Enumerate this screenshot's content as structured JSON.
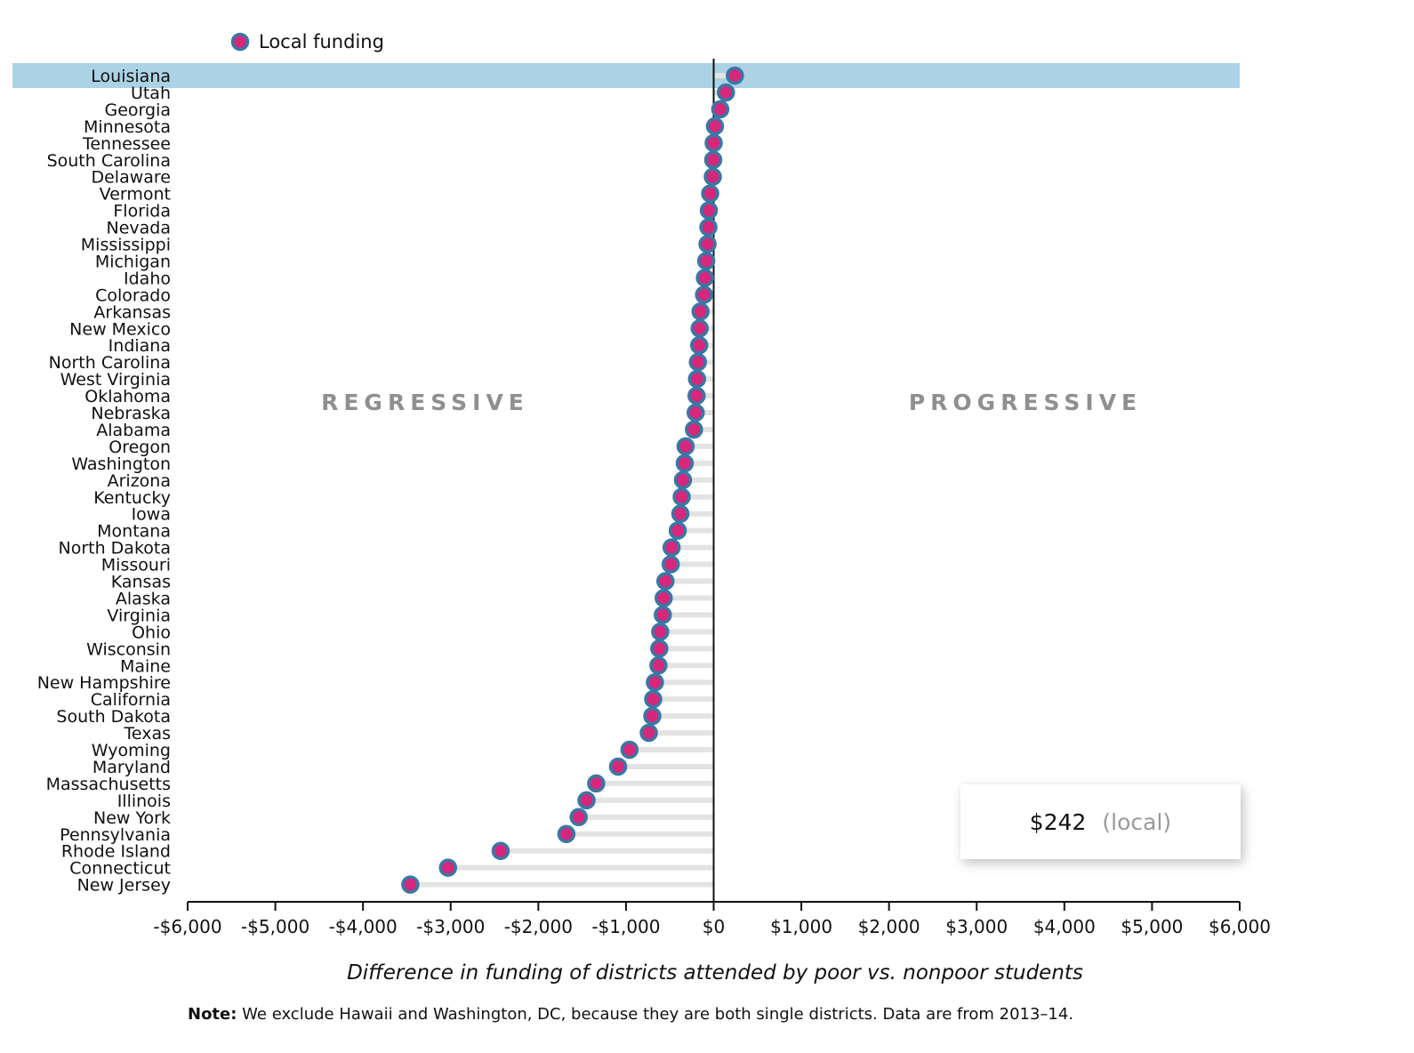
{
  "legend": {
    "label": "Local funding",
    "marker_icon": "dot-marker-icon"
  },
  "regions": {
    "left": "REGRESSIVE",
    "right": "PROGRESSIVE"
  },
  "tooltip": {
    "value": "$242",
    "type": "(local)"
  },
  "note": {
    "bold": "Note:",
    "text": " We exclude Hawaii and Washington, DC, because they are both single districts. Data are from 2013–14."
  },
  "colors": {
    "highlight": "#acd2e6",
    "marker_fill": "#d6277b",
    "marker_stroke": "#3a77a4",
    "stem": "#e3e3e3",
    "axis": "#111111"
  },
  "chart_data": {
    "type": "dot",
    "title": "",
    "xlabel": "Difference in funding of districts attended by poor vs. nonpoor students",
    "ylabel": "",
    "xlim": [
      -6000,
      6000
    ],
    "xticks": [
      -6000,
      -5000,
      -4000,
      -3000,
      -2000,
      -1000,
      0,
      1000,
      2000,
      3000,
      4000,
      5000,
      6000
    ],
    "xtick_labels": [
      "-$6,000",
      "-$5,000",
      "-$4,000",
      "-$3,000",
      "-$2,000",
      "-$1,000",
      "$0",
      "$1,000",
      "$2,000",
      "$3,000",
      "$4,000",
      "$5,000",
      "$6,000"
    ],
    "highlighted": "Louisiana",
    "series": [
      {
        "name": "Local funding",
        "points": [
          {
            "state": "Louisiana",
            "value": 242
          },
          {
            "state": "Utah",
            "value": 140
          },
          {
            "state": "Georgia",
            "value": 75
          },
          {
            "state": "Minnesota",
            "value": 15
          },
          {
            "state": "Tennessee",
            "value": 0
          },
          {
            "state": "South Carolina",
            "value": -5
          },
          {
            "state": "Delaware",
            "value": -10
          },
          {
            "state": "Vermont",
            "value": -40
          },
          {
            "state": "Florida",
            "value": -55
          },
          {
            "state": "Nevada",
            "value": -60
          },
          {
            "state": "Mississippi",
            "value": -70
          },
          {
            "state": "Michigan",
            "value": -85
          },
          {
            "state": "Idaho",
            "value": -100
          },
          {
            "state": "Colorado",
            "value": -110
          },
          {
            "state": "Arkansas",
            "value": -150
          },
          {
            "state": "New Mexico",
            "value": -160
          },
          {
            "state": "Indiana",
            "value": -165
          },
          {
            "state": "North Carolina",
            "value": -180
          },
          {
            "state": "West Virginia",
            "value": -190
          },
          {
            "state": "Oklahoma",
            "value": -195
          },
          {
            "state": "Nebraska",
            "value": -205
          },
          {
            "state": "Alabama",
            "value": -225
          },
          {
            "state": "Oregon",
            "value": -320
          },
          {
            "state": "Washington",
            "value": -330
          },
          {
            "state": "Arizona",
            "value": -350
          },
          {
            "state": "Kentucky",
            "value": -365
          },
          {
            "state": "Iowa",
            "value": -380
          },
          {
            "state": "Montana",
            "value": -410
          },
          {
            "state": "North Dakota",
            "value": -480
          },
          {
            "state": "Missouri",
            "value": -490
          },
          {
            "state": "Kansas",
            "value": -550
          },
          {
            "state": "Alaska",
            "value": -570
          },
          {
            "state": "Virginia",
            "value": -580
          },
          {
            "state": "Ohio",
            "value": -610
          },
          {
            "state": "Wisconsin",
            "value": -620
          },
          {
            "state": "Maine",
            "value": -630
          },
          {
            "state": "New Hampshire",
            "value": -670
          },
          {
            "state": "California",
            "value": -690
          },
          {
            "state": "South Dakota",
            "value": -700
          },
          {
            "state": "Texas",
            "value": -740
          },
          {
            "state": "Wyoming",
            "value": -960
          },
          {
            "state": "Maryland",
            "value": -1090
          },
          {
            "state": "Massachusetts",
            "value": -1340
          },
          {
            "state": "Illinois",
            "value": -1450
          },
          {
            "state": "New York",
            "value": -1540
          },
          {
            "state": "Pennsylvania",
            "value": -1680
          },
          {
            "state": "Rhode Island",
            "value": -2430
          },
          {
            "state": "Connecticut",
            "value": -3030
          },
          {
            "state": "New Jersey",
            "value": -3460
          }
        ]
      }
    ]
  }
}
